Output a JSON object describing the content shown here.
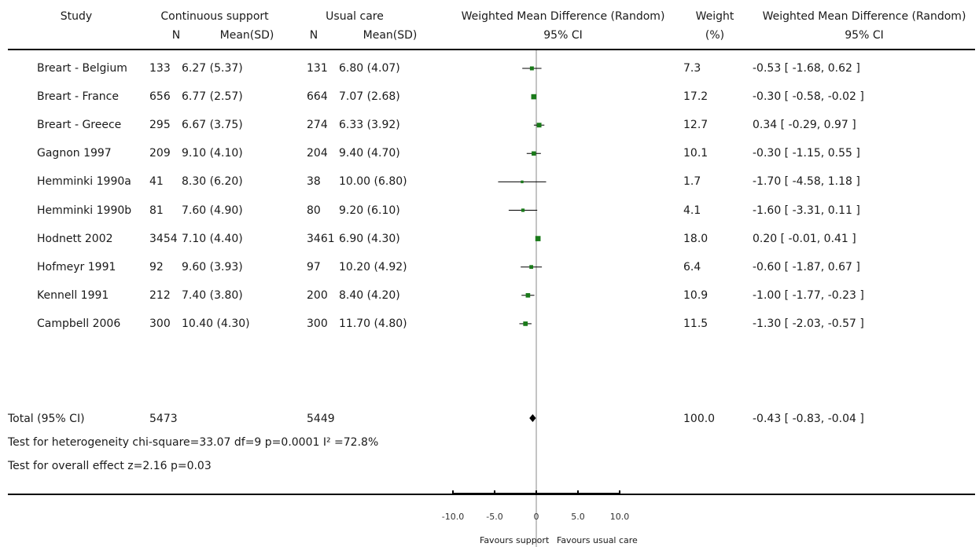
{
  "header": {
    "study": "Study",
    "group1": "Continuous support",
    "group2": "Usual care",
    "plot_title": "Weighted Mean Difference (Random)",
    "plot_ci": "95% CI",
    "weight": "Weight",
    "weight_unit": "(%)",
    "wmd_title": "Weighted Mean Difference (Random)",
    "wmd_ci": "95% CI",
    "n1": "N",
    "mean1": "Mean(SD)",
    "n2": "N",
    "mean2": "Mean(SD)"
  },
  "rows": [
    {
      "study": "Breart - Belgium",
      "n1": "133",
      "m1": "6.27 (5.37)",
      "n2": "131",
      "m2": "6.80 (4.07)",
      "weight": "7.3",
      "wmd": "-0.53 [ -1.68, 0.62 ]"
    },
    {
      "study": "Breart - France",
      "n1": "656",
      "m1": "6.77 (2.57)",
      "n2": "664",
      "m2": "7.07 (2.68)",
      "weight": "17.2",
      "wmd": "-0.30 [ -0.58, -0.02 ]"
    },
    {
      "study": "Breart - Greece",
      "n1": "295",
      "m1": "6.67 (3.75)",
      "n2": "274",
      "m2": "6.33 (3.92)",
      "weight": "12.7",
      "wmd": "0.34 [ -0.29, 0.97 ]"
    },
    {
      "study": "Gagnon 1997",
      "n1": "209",
      "m1": "9.10 (4.10)",
      "n2": "204",
      "m2": "9.40 (4.70)",
      "weight": "10.1",
      "wmd": "-0.30 [ -1.15, 0.55 ]"
    },
    {
      "study": "Hemminki 1990a",
      "n1": "41",
      "m1": "8.30 (6.20)",
      "n2": "38",
      "m2": "10.00 (6.80)",
      "weight": "1.7",
      "wmd": "-1.70 [ -4.58, 1.18 ]"
    },
    {
      "study": "Hemminki 1990b",
      "n1": "81",
      "m1": "7.60 (4.90)",
      "n2": "80",
      "m2": "9.20 (6.10)",
      "weight": "4.1",
      "wmd": "-1.60 [ -3.31, 0.11 ]"
    },
    {
      "study": "Hodnett 2002",
      "n1": "3454",
      "m1": "7.10 (4.40)",
      "n2": "3461",
      "m2": "6.90 (4.30)",
      "weight": "18.0",
      "wmd": "0.20 [ -0.01, 0.41 ]"
    },
    {
      "study": "Hofmeyr 1991",
      "n1": "92",
      "m1": "9.60 (3.93)",
      "n2": "97",
      "m2": "10.20 (4.92)",
      "weight": "6.4",
      "wmd": "-0.60 [ -1.87, 0.67 ]"
    },
    {
      "study": "Kennell 1991",
      "n1": "212",
      "m1": "7.40 (3.80)",
      "n2": "200",
      "m2": "8.40 (4.20)",
      "weight": "10.9",
      "wmd": "-1.00 [ -1.77, -0.23 ]"
    },
    {
      "study": "Campbell 2006",
      "n1": "300",
      "m1": "10.40 (4.30)",
      "n2": "300",
      "m2": "11.70 (4.80)",
      "weight": "11.5",
      "wmd": "-1.30 [ -2.03, -0.57 ]"
    }
  ],
  "total": {
    "study": "Total (95% CI)",
    "n1": "5473",
    "n2": "5449",
    "weight": "100.0",
    "wmd": "-0.43 [ -0.83, -0.04 ]"
  },
  "stats": {
    "heterogeneity": "Test for heterogeneity chi-square=33.07 df=9 p=0.0001 I² =72.8%",
    "overall_effect": "Test for overall effect z=2.16   p=0.03"
  },
  "axis": {
    "ticks": [
      "-10.0",
      "-5.0",
      "0",
      "5.0",
      "10.0"
    ],
    "favours_left": "Favours support",
    "favours_right": "Favours usual care"
  },
  "chart_data": {
    "type": "forest",
    "x_range": [
      -10,
      10
    ],
    "tick_values": [
      -10,
      -5,
      0,
      5,
      10
    ],
    "marker_color": "#1a7a1a",
    "studies": [
      {
        "name": "Breart - Belgium",
        "est": -0.53,
        "lo": -1.68,
        "hi": 0.62,
        "weight": 7.3
      },
      {
        "name": "Breart - France",
        "est": -0.3,
        "lo": -0.58,
        "hi": -0.02,
        "weight": 17.2
      },
      {
        "name": "Breart - Greece",
        "est": 0.34,
        "lo": -0.29,
        "hi": 0.97,
        "weight": 12.7
      },
      {
        "name": "Gagnon 1997",
        "est": -0.3,
        "lo": -1.15,
        "hi": 0.55,
        "weight": 10.1
      },
      {
        "name": "Hemminki 1990a",
        "est": -1.7,
        "lo": -4.58,
        "hi": 1.18,
        "weight": 1.7
      },
      {
        "name": "Hemminki 1990b",
        "est": -1.6,
        "lo": -3.31,
        "hi": 0.11,
        "weight": 4.1
      },
      {
        "name": "Hodnett 2002",
        "est": 0.2,
        "lo": -0.01,
        "hi": 0.41,
        "weight": 18.0
      },
      {
        "name": "Hofmeyr 1991",
        "est": -0.6,
        "lo": -1.87,
        "hi": 0.67,
        "weight": 6.4
      },
      {
        "name": "Kennell 1991",
        "est": -1.0,
        "lo": -1.77,
        "hi": -0.23,
        "weight": 10.9
      },
      {
        "name": "Campbell 2006",
        "est": -1.3,
        "lo": -2.03,
        "hi": -0.57,
        "weight": 11.5
      }
    ],
    "pooled": {
      "name": "Total (95% CI)",
      "est": -0.43,
      "lo": -0.83,
      "hi": -0.04
    }
  }
}
